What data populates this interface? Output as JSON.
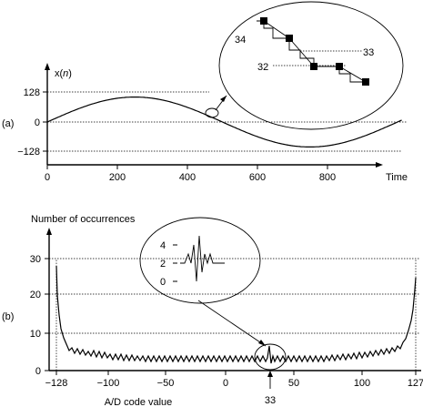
{
  "chart_data": [
    {
      "panel_label": "(a)",
      "type": "line",
      "ylabel_prefix": "x(",
      "ylabel_var": "n",
      "ylabel_suffix": ")",
      "xlabel": "Time",
      "x_range": [
        0,
        1000
      ],
      "y_range": [
        -160,
        160
      ],
      "x_ticks": [
        "0",
        "200",
        "400",
        "600",
        "800"
      ],
      "y_ticks": [
        "128",
        "0",
        "−128"
      ],
      "reference_lines": [
        128,
        0,
        -128
      ],
      "series": [
        {
          "function": "sine",
          "amplitude": 108,
          "period": 1000,
          "x": [
            0,
            50,
            100,
            150,
            200,
            250,
            300,
            350,
            400,
            450,
            500,
            550,
            600,
            650,
            700,
            750,
            800,
            850,
            900,
            950,
            1000
          ],
          "values": [
            0,
            33,
            63,
            87,
            103,
            108,
            103,
            87,
            63,
            33,
            0,
            -33,
            -63,
            -87,
            -103,
            -108,
            -103,
            -87,
            -63,
            -33,
            0
          ]
        }
      ],
      "inset": {
        "samples": [
          {
            "code": 34,
            "marker": true
          },
          {
            "code": 34,
            "marker": false
          },
          {
            "code": 33,
            "marker": true
          },
          {
            "code": 33,
            "marker": false
          },
          {
            "code": 32,
            "marker": true
          },
          {
            "code": 32,
            "marker": true
          },
          {
            "code": 31,
            "marker": true
          }
        ],
        "labels": [
          "34",
          "33",
          "32"
        ]
      }
    },
    {
      "panel_label": "(b)",
      "type": "line",
      "ylabel": "Number of occurrences",
      "xlabel": "A/D code value",
      "x_range": [
        -128,
        127
      ],
      "y_range": [
        0,
        35
      ],
      "x_ticks": [
        "−128",
        "−100",
        "−50",
        "0",
        "50",
        "100",
        "127"
      ],
      "y_ticks": [
        "0",
        "10",
        "20",
        "30"
      ],
      "reference_lines": [
        30,
        20,
        10
      ],
      "annotation": "33",
      "series": [
        {
          "x": [
            -128,
            -127,
            -126,
            -125,
            -124,
            -122,
            -120,
            -118,
            -116,
            -114,
            -112,
            -110,
            -106,
            -102,
            -98,
            -90,
            -80,
            -60,
            -30,
            0,
            30,
            33,
            36,
            60,
            90,
            98,
            102,
            106,
            110,
            112,
            114,
            116,
            118,
            120,
            122,
            123,
            124,
            125,
            126,
            127
          ],
          "values": [
            29,
            18,
            13,
            11,
            10,
            9,
            8,
            7,
            7,
            6,
            6,
            5,
            5,
            4,
            4,
            3.5,
            3,
            3,
            3,
            3,
            3,
            7,
            3,
            3,
            3.5,
            4,
            4,
            5,
            5,
            6,
            6,
            7,
            7,
            8,
            9,
            10,
            11,
            13,
            17,
            24
          ]
        }
      ],
      "inset": {
        "y_ticks": [
          "4",
          "2",
          "0"
        ],
        "values": [
          2,
          2,
          2,
          3,
          2,
          4,
          0,
          5,
          1,
          3,
          2,
          3,
          2,
          2,
          2
        ]
      }
    }
  ]
}
